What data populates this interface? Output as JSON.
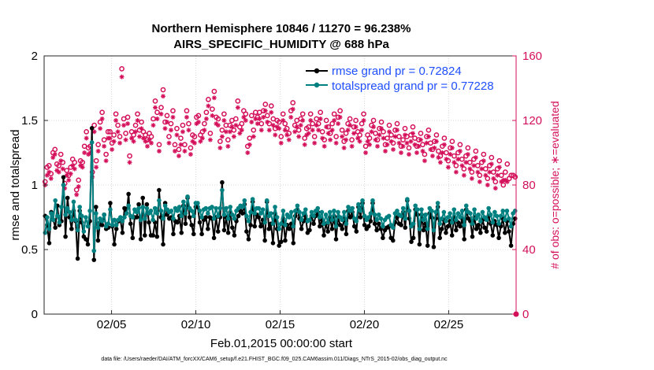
{
  "chart_data": {
    "type": "line",
    "title_line1": "Northern Hemisphere 10846 / 11270 = 96.238%",
    "title_line2": "AIRS_SPECIFIC_HUMIDITY @ 688 hPa",
    "ylabel_left": "rmse and totalspread",
    "ylabel_right": "# of obs: o=possible; ∗=evaluated",
    "xlabel": "Feb.01,2015 00:00:00 start",
    "footnote": "data file: /Users/raeder/DAI/ATM_forcXX/CAM6_setup/f.e21.FHIST_BGC.f09_025.CAM6assim.011/Diags_NTrS_2015-02/obs_diag_output.nc",
    "ylim_left": [
      0,
      2
    ],
    "ylim_right": [
      0,
      160
    ],
    "xlim": [
      1,
      29
    ],
    "left_ticks": [
      "0",
      "0.5",
      "1",
      "1.5",
      "2"
    ],
    "right_ticks": [
      "0",
      "40",
      "80",
      "120",
      "160"
    ],
    "x_ticks": [
      {
        "day": 5,
        "label": "02/05"
      },
      {
        "day": 10,
        "label": "02/10"
      },
      {
        "day": 15,
        "label": "02/15"
      },
      {
        "day": 20,
        "label": "02/20"
      },
      {
        "day": 25,
        "label": "02/25"
      }
    ],
    "grid": true,
    "legend_position": "top-right",
    "colors": {
      "rmse": "#000000",
      "spread": "#008080",
      "obs": "#d40f5a",
      "right_axis": "#d40f5a",
      "legend_text": "#1f4fff"
    },
    "series": [
      {
        "name": "rmse grand pr = 0.72824",
        "key": "rmse",
        "values": [
          0.76,
          0.69,
          0.55,
          0.79,
          0.73,
          0.67,
          0.84,
          0.69,
          0.72,
          1.06,
          0.6,
          0.9,
          0.75,
          0.66,
          0.8,
          0.72,
          0.43,
          0.8,
          0.71,
          0.6,
          0.58,
          0.54,
          0.72,
          1.44,
          0.42,
          0.83,
          0.57,
          0.71,
          0.69,
          0.77,
          0.66,
          0.67,
          0.86,
          0.68,
          0.54,
          0.66,
          0.72,
          0.73,
          0.63,
          0.82,
          0.78,
          0.93,
          0.7,
          0.59,
          0.75,
          0.75,
          0.85,
          0.58,
          0.9,
          0.61,
          0.85,
          0.71,
          0.61,
          0.61,
          0.71,
          0.6,
          0.96,
          0.75,
          0.54,
          0.86,
          0.77,
          0.74,
          0.75,
          0.62,
          0.72,
          0.71,
          0.76,
          0.63,
          0.84,
          0.7,
          0.9,
          0.75,
          0.69,
          0.62,
          0.83,
          0.83,
          0.71,
          0.62,
          0.73,
          0.75,
          0.66,
          0.75,
          0.74,
          0.59,
          0.75,
          0.64,
          0.75,
          1.02,
          0.65,
          0.75,
          0.63,
          0.79,
          0.67,
          0.61,
          0.72,
          0.76,
          0.8,
          0.78,
          0.85,
          0.64,
          0.58,
          0.69,
          0.87,
          0.68,
          0.77,
          0.75,
          0.68,
          0.73,
          0.57,
          0.87,
          0.66,
          0.7,
          0.55,
          0.78,
          0.66,
          0.53,
          0.56,
          0.74,
          0.57,
          0.69,
          0.66,
          0.7,
          0.55,
          0.76,
          0.81,
          0.74,
          0.66,
          0.72,
          0.76,
          0.63,
          0.65,
          0.76,
          0.7,
          0.76,
          0.79,
          0.68,
          0.73,
          0.61,
          0.7,
          0.64,
          0.75,
          0.66,
          0.76,
          0.58,
          0.75,
          0.69,
          0.66,
          0.74,
          0.62,
          0.8,
          0.75,
          0.79,
          0.68,
          0.64,
          0.83,
          0.75,
          0.86,
          0.69,
          0.66,
          0.68,
          0.72,
          0.86,
          0.7,
          0.65,
          0.7,
          0.66,
          0.59,
          0.65,
          0.67,
          0.68,
          0.59,
          0.57,
          0.71,
          0.75,
          0.7,
          0.69,
          0.79,
          0.67,
          0.88,
          0.74,
          0.56,
          0.59,
          0.81,
          0.77,
          0.54,
          0.77,
          0.65,
          0.7,
          0.53,
          0.78,
          0.75,
          0.52,
          0.74,
          0.83,
          0.59,
          0.66,
          0.73,
          0.63,
          0.68,
          0.72,
          0.61,
          0.75,
          0.65,
          0.71,
          0.68,
          0.74,
          0.58,
          0.81,
          0.74,
          0.72,
          0.6,
          0.75,
          0.66,
          0.69,
          0.63,
          0.73,
          0.67,
          0.64,
          0.76,
          0.7,
          0.61,
          0.72,
          0.69,
          0.59,
          0.68,
          0.74,
          0.63,
          0.72,
          0.64,
          0.53,
          0.7,
          0.74
        ]
      },
      {
        "name": "totalspread grand pr = 0.77228",
        "key": "spread",
        "values": [
          0.63,
          0.75,
          0.66,
          0.78,
          0.73,
          0.88,
          0.76,
          0.71,
          0.83,
          1.0,
          0.77,
          0.82,
          0.79,
          0.73,
          0.87,
          0.73,
          0.65,
          0.83,
          0.76,
          0.64,
          0.75,
          0.68,
          0.8,
          1.33,
          0.49,
          0.78,
          0.67,
          0.74,
          0.72,
          0.77,
          0.68,
          0.7,
          0.81,
          0.69,
          0.73,
          0.69,
          0.73,
          0.75,
          0.72,
          0.75,
          0.78,
          0.84,
          0.76,
          0.75,
          0.81,
          0.79,
          0.82,
          0.73,
          0.83,
          0.74,
          0.82,
          0.78,
          0.8,
          0.73,
          0.82,
          0.78,
          0.88,
          0.8,
          0.74,
          0.84,
          0.81,
          0.79,
          0.8,
          0.74,
          0.82,
          0.8,
          0.83,
          0.76,
          0.87,
          0.78,
          0.91,
          0.82,
          0.8,
          0.76,
          0.86,
          0.86,
          0.8,
          0.75,
          0.81,
          0.82,
          0.78,
          0.82,
          0.83,
          0.74,
          0.82,
          0.76,
          0.82,
          0.96,
          0.77,
          0.82,
          0.74,
          0.83,
          0.77,
          0.74,
          0.8,
          0.82,
          0.84,
          0.83,
          0.88,
          0.76,
          0.72,
          0.79,
          0.89,
          0.78,
          0.82,
          0.82,
          0.78,
          0.81,
          0.71,
          0.88,
          0.76,
          0.78,
          0.7,
          0.83,
          0.75,
          0.66,
          0.7,
          0.8,
          0.69,
          0.77,
          0.75,
          0.79,
          0.68,
          0.8,
          0.84,
          0.79,
          0.73,
          0.78,
          0.81,
          0.72,
          0.73,
          0.79,
          0.76,
          0.8,
          0.82,
          0.75,
          0.79,
          0.7,
          0.77,
          0.71,
          0.79,
          0.73,
          0.8,
          0.68,
          0.79,
          0.75,
          0.73,
          0.79,
          0.7,
          0.83,
          0.8,
          0.82,
          0.74,
          0.72,
          0.85,
          0.8,
          0.88,
          0.76,
          0.73,
          0.75,
          0.78,
          0.88,
          0.77,
          0.73,
          0.77,
          0.74,
          0.68,
          0.73,
          0.75,
          0.76,
          0.69,
          0.67,
          0.78,
          0.8,
          0.77,
          0.76,
          0.82,
          0.74,
          0.89,
          0.8,
          0.68,
          0.7,
          0.84,
          0.81,
          0.66,
          0.81,
          0.73,
          0.77,
          0.66,
          0.82,
          0.8,
          0.65,
          0.79,
          0.86,
          0.7,
          0.74,
          0.79,
          0.72,
          0.75,
          0.78,
          0.71,
          0.81,
          0.73,
          0.78,
          0.75,
          0.8,
          0.69,
          0.84,
          0.79,
          0.78,
          0.7,
          0.81,
          0.74,
          0.77,
          0.72,
          0.79,
          0.75,
          0.73,
          0.82,
          0.77,
          0.71,
          0.79,
          0.76,
          0.7,
          0.76,
          0.8,
          0.73,
          0.8,
          0.74,
          0.68,
          0.78,
          0.8
        ]
      }
    ],
    "obs_possible": [
      82,
      91,
      92,
      87,
      100,
      102,
      93,
      92,
      99,
      94,
      81,
      89,
      86,
      91,
      96,
      94,
      77,
      83,
      95,
      94,
      104,
      113,
      103,
      104,
      88,
      117,
      95,
      105,
      119,
      125,
      108,
      99,
      113,
      113,
      106,
      111,
      124,
      117,
      110,
      152,
      121,
      112,
      122,
      98,
      113,
      111,
      117,
      124,
      114,
      119,
      113,
      111,
      108,
      112,
      110,
      121,
      132,
      125,
      105,
      128,
      139,
      119,
      123,
      110,
      118,
      126,
      105,
      115,
      102,
      109,
      117,
      105,
      126,
      118,
      103,
      111,
      110,
      122,
      123,
      111,
      113,
      118,
      125,
      133,
      112,
      127,
      138,
      122,
      121,
      107,
      114,
      124,
      117,
      108,
      117,
      120,
      114,
      121,
      132,
      116,
      118,
      126,
      124,
      104,
      109,
      123,
      114,
      125,
      122,
      125,
      118,
      126,
      130,
      123,
      118,
      129,
      121,
      115,
      120,
      119,
      110,
      124,
      118,
      115,
      112,
      126,
      131,
      117,
      120,
      114,
      121,
      124,
      109,
      115,
      116,
      124,
      118,
      110,
      121,
      118,
      125,
      113,
      108,
      120,
      116,
      112,
      118,
      124,
      110,
      122,
      126,
      114,
      107,
      112,
      118,
      121,
      108,
      116,
      120,
      113,
      111,
      118,
      124,
      104,
      111,
      109,
      117,
      120,
      112,
      108,
      115,
      119,
      113,
      105,
      109,
      117,
      111,
      106,
      114,
      118,
      110,
      104,
      108,
      115,
      110,
      103,
      111,
      116,
      109,
      104,
      108,
      112,
      105,
      99,
      110,
      114,
      106,
      102,
      107,
      111,
      101,
      98,
      104,
      109,
      100,
      95,
      103,
      107,
      98,
      92,
      100,
      105,
      96,
      90,
      98,
      103,
      94,
      88,
      96,
      101,
      92,
      86,
      94,
      99,
      90,
      84,
      92,
      97,
      88,
      82,
      90,
      95,
      86,
      80,
      88,
      93,
      84,
      86,
      86,
      85
    ],
    "obs_evaluated": [
      80,
      86,
      88,
      84,
      97,
      99,
      89,
      88,
      95,
      90,
      78,
      86,
      83,
      87,
      92,
      90,
      74,
      79,
      92,
      91,
      100,
      109,
      99,
      100,
      85,
      113,
      91,
      101,
      115,
      121,
      104,
      95,
      109,
      109,
      102,
      107,
      120,
      113,
      106,
      147,
      117,
      108,
      118,
      94,
      109,
      107,
      113,
      120,
      110,
      115,
      109,
      107,
      104,
      108,
      106,
      117,
      128,
      121,
      101,
      124,
      135,
      115,
      119,
      106,
      114,
      122,
      101,
      111,
      98,
      105,
      113,
      101,
      122,
      114,
      99,
      107,
      106,
      118,
      119,
      107,
      109,
      114,
      121,
      129,
      108,
      123,
      134,
      118,
      117,
      103,
      110,
      120,
      113,
      104,
      113,
      116,
      110,
      117,
      128,
      112,
      114,
      122,
      120,
      100,
      105,
      119,
      110,
      121,
      118,
      121,
      114,
      122,
      126,
      119,
      114,
      125,
      117,
      111,
      116,
      115,
      106,
      120,
      114,
      111,
      108,
      122,
      127,
      113,
      116,
      110,
      117,
      120,
      105,
      111,
      112,
      120,
      114,
      106,
      117,
      114,
      121,
      109,
      104,
      116,
      112,
      108,
      114,
      120,
      106,
      118,
      122,
      110,
      103,
      108,
      114,
      117,
      104,
      112,
      116,
      109,
      107,
      114,
      120,
      100,
      107,
      105,
      113,
      116,
      108,
      104,
      111,
      115,
      109,
      101,
      105,
      113,
      107,
      102,
      110,
      114,
      106,
      100,
      104,
      111,
      106,
      99,
      107,
      112,
      105,
      100,
      104,
      108,
      101,
      95,
      106,
      110,
      102,
      98,
      103,
      107,
      97,
      94,
      100,
      105,
      96,
      91,
      99,
      103,
      94,
      88,
      96,
      101,
      92,
      86,
      94,
      99,
      90,
      84,
      92,
      97,
      88,
      82,
      90,
      95,
      86,
      80,
      88,
      93,
      84,
      78,
      86,
      91,
      82,
      83,
      83,
      82
    ]
  }
}
